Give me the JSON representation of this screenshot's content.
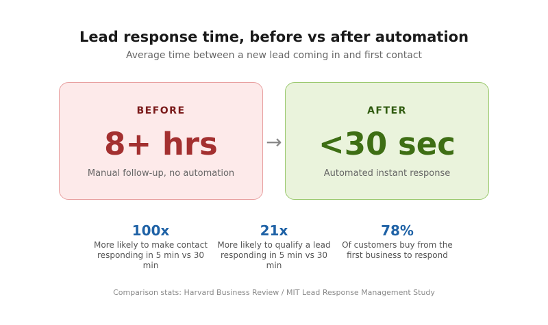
{
  "header": {
    "title": "Lead response time, before vs after automation",
    "subtitle": "Average time between a new lead coming in and first contact"
  },
  "comparison": {
    "before": {
      "label": "BEFORE",
      "value": "8+ hrs",
      "description": "Manual follow-up, no automation"
    },
    "arrow": "→",
    "after": {
      "label": "AFTER",
      "value": "<30 sec",
      "description": "Automated instant response"
    }
  },
  "stats": [
    {
      "value": "100x",
      "description": "More likely to make contact responding in 5 min vs 30 min"
    },
    {
      "value": "21x",
      "description": "More likely to qualify a lead responding in 5 min vs 30 min"
    },
    {
      "value": "78%",
      "description": "Of customers buy from the first business to respond"
    }
  ],
  "footer": {
    "source": "Comparison stats: Harvard Business Review / MIT Lead Response Management Study"
  },
  "colors": {
    "before_accent": "#a33030",
    "after_accent": "#3e6e14",
    "stat_accent": "#1f62a6"
  }
}
